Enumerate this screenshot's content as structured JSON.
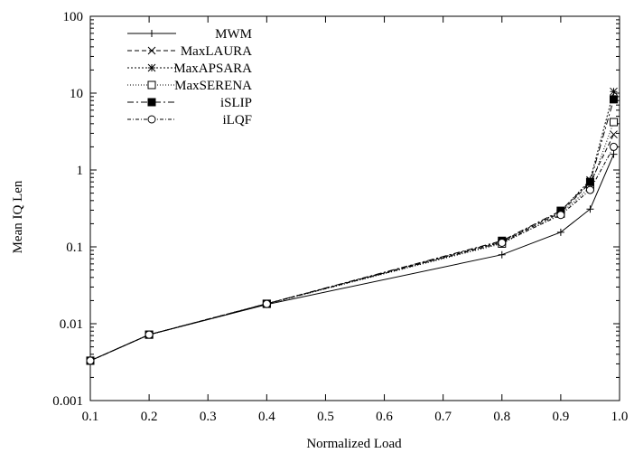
{
  "chart_data": {
    "type": "line",
    "title": "",
    "xlabel": "Normalized Load",
    "ylabel": "Mean IQ Len",
    "yscale": "log",
    "xlim": [
      0.1,
      1.0
    ],
    "ylim": [
      0.001,
      100
    ],
    "x_ticks": [
      "0.1",
      "0.2",
      "0.3",
      "0.4",
      "0.5",
      "0.6",
      "0.7",
      "0.8",
      "0.9",
      "1.0"
    ],
    "y_ticks": [
      "0.001",
      "0.01",
      "0.1",
      "1",
      "10",
      "100"
    ],
    "grid": false,
    "legend_position": "top-left",
    "x": [
      0.1,
      0.2,
      0.4,
      0.8,
      0.9,
      0.95,
      0.99
    ],
    "series": [
      {
        "name": "MWM",
        "marker": "plus",
        "dash": "solid",
        "values": [
          0.0033,
          0.0072,
          0.0178,
          0.079,
          0.155,
          0.31,
          1.6
        ]
      },
      {
        "name": "MaxLAURA",
        "marker": "cross",
        "dash": "dashed",
        "values": [
          0.0033,
          0.0072,
          0.0182,
          0.115,
          0.28,
          0.68,
          2.9
        ]
      },
      {
        "name": "MaxAPSARA",
        "marker": "asterisk",
        "dash": "dotted",
        "values": [
          0.0033,
          0.0072,
          0.0182,
          0.118,
          0.29,
          0.74,
          10.5
        ]
      },
      {
        "name": "MaxSERENA",
        "marker": "open-square",
        "dash": "fine-dotted",
        "values": [
          0.0033,
          0.0072,
          0.0181,
          0.11,
          0.27,
          0.6,
          4.2
        ]
      },
      {
        "name": "iSLIP",
        "marker": "filled-square",
        "dash": "dash-dot",
        "values": [
          0.0033,
          0.0072,
          0.0182,
          0.12,
          0.295,
          0.7,
          8.3
        ]
      },
      {
        "name": "iLQF",
        "marker": "open-circle",
        "dash": "dash-dot-fine",
        "values": [
          0.0033,
          0.0072,
          0.0181,
          0.113,
          0.26,
          0.55,
          2.0
        ]
      }
    ]
  }
}
